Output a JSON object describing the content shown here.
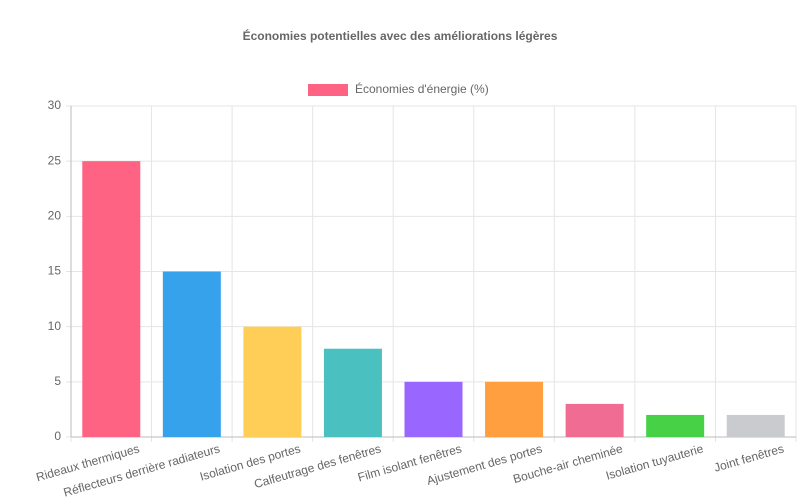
{
  "chart_data": {
    "type": "bar",
    "title": "Économies potentielles avec des améliorations légères",
    "categories": [
      "Rideaux thermiques",
      "Réflecteurs derrière radiateurs",
      "Isolation des portes",
      "Calfeutrage des fenêtres",
      "Film isolant fenêtres",
      "Ajustement des portes",
      "Bouche-air cheminée",
      "Isolation tuyauterie",
      "Joint fenêtres"
    ],
    "series": [
      {
        "name": "Économies d'énergie (%)",
        "colors": [
          "#ff6384",
          "#36a2eb",
          "#ffce56",
          "#4bc0c0",
          "#9966ff",
          "#ff9f40",
          "#f06c92",
          "#47d147",
          "#c9cbcf"
        ],
        "values": [
          25,
          15,
          10,
          8,
          5,
          5,
          3,
          2,
          2
        ]
      }
    ],
    "ylim": [
      0,
      30
    ],
    "yticks": [
      0,
      5,
      10,
      15,
      20,
      25,
      30
    ],
    "grid": true
  }
}
